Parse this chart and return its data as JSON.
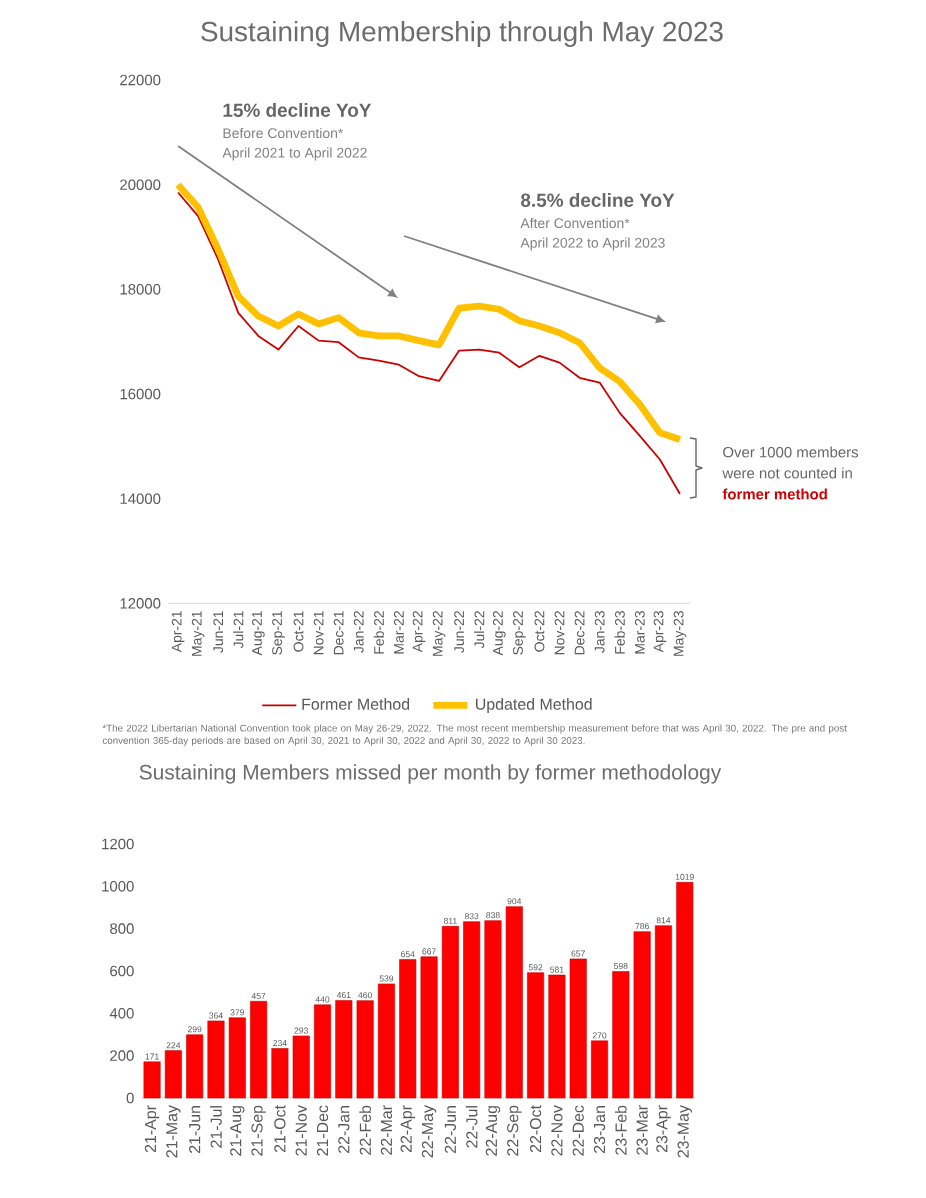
{
  "chart_data": [
    {
      "type": "line",
      "title": "Sustaining Membership through May 2023",
      "categories": [
        "Apr-21",
        "May-21",
        "Jun-21",
        "Jul-21",
        "Aug-21",
        "Sep-21",
        "Oct-21",
        "Nov-21",
        "Dec-21",
        "Jan-22",
        "Feb-22",
        "Mar-22",
        "Apr-22",
        "May-22",
        "Jun-22",
        "Jul-22",
        "Aug-22",
        "Sep-22",
        "Oct-22",
        "Nov-22",
        "Dec-22",
        "Jan-23",
        "Feb-23",
        "Mar-23",
        "Apr-23",
        "May-23"
      ],
      "series": [
        {
          "name": "Former Method",
          "color": "#cc0000",
          "values": [
            19850,
            19400,
            18570,
            17550,
            17110,
            16850,
            17300,
            17020,
            16990,
            16700,
            16640,
            16560,
            16340,
            16250,
            16830,
            16850,
            16790,
            16510,
            16730,
            16600,
            16310,
            16220,
            15640,
            15200,
            14750,
            14090
          ]
        },
        {
          "name": "Updated Method",
          "color": "#ffc000",
          "values": [
            20000,
            19570,
            18760,
            17870,
            17490,
            17300,
            17530,
            17340,
            17460,
            17170,
            17110,
            17110,
            17020,
            16940,
            17640,
            17680,
            17620,
            17400,
            17300,
            17170,
            16980,
            16500,
            16240,
            15800,
            15260,
            15130
          ]
        }
      ],
      "ylim": [
        12000,
        22000
      ],
      "yticks": [
        12000,
        14000,
        16000,
        18000,
        20000,
        22000
      ],
      "legend": "bottom",
      "line_style": "solid",
      "annotations": [
        "15% decline YoY",
        "Before Convention*",
        "April 2021 to April 2022",
        "8.5% decline YoY",
        "After Convention*",
        "April 2022 to April 2023",
        "Over 1000 members",
        "were not counted in",
        "former method",
        "*The 2022 Libertarian National Convention took place on May 26-29, 2022. The most recent membership measurement before that was April 30, 2022. The pre and post convention 365-day periods are based on April 30, 2021 to April 30, 2022 and April 30, 2022 to April 30 2023."
      ]
    },
    {
      "type": "bar",
      "title": "Sustaining Members missed per month by former methodology",
      "categories": [
        "21-Apr",
        "21-May",
        "21-Jun",
        "21-Jul",
        "21-Aug",
        "21-Sep",
        "21-Oct",
        "21-Nov",
        "21-Dec",
        "22-Jan",
        "22-Feb",
        "22-Mar",
        "22-Apr",
        "22-May",
        "22-Jun",
        "22-Jul",
        "22-Aug",
        "22-Sep",
        "22-Oct",
        "22-Nov",
        "22-Dec",
        "23-Jan",
        "23-Feb",
        "23-Mar",
        "23-Apr",
        "23-May"
      ],
      "values": [
        171,
        224,
        299,
        364,
        379,
        457,
        234,
        293,
        440,
        461,
        460,
        539,
        654,
        667,
        811,
        833,
        838,
        904,
        592,
        581,
        657,
        270,
        598,
        786,
        814,
        1019
      ],
      "color": "#ff0000",
      "ylim": [
        0,
        1200
      ],
      "yticks": [
        0,
        200,
        400,
        600,
        800,
        1000,
        1200
      ],
      "data_labels": true
    }
  ]
}
